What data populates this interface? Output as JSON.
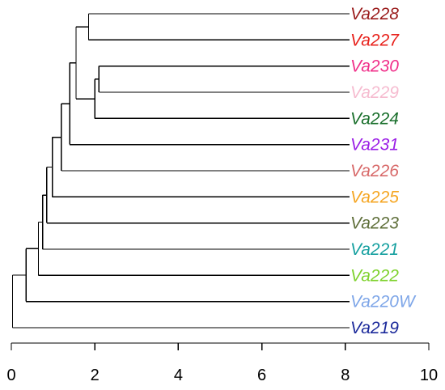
{
  "chart_data": {
    "type": "dendrogram",
    "orientation": "horizontal",
    "xlim": [
      0,
      10
    ],
    "x_ticks": [
      0,
      2,
      4,
      6,
      8,
      10
    ],
    "leaves": [
      {
        "name": "Va228",
        "color": "#9a1b1b"
      },
      {
        "name": "Va227",
        "color": "#e8221c"
      },
      {
        "name": "Va230",
        "color": "#f0308a"
      },
      {
        "name": "Va229",
        "color": "#f6bcd0"
      },
      {
        "name": "Va224",
        "color": "#1a6f2c"
      },
      {
        "name": "Va231",
        "color": "#9b1ee6"
      },
      {
        "name": "Va226",
        "color": "#d86a6a"
      },
      {
        "name": "Va225",
        "color": "#f5a623"
      },
      {
        "name": "Va223",
        "color": "#5f6f3a"
      },
      {
        "name": "Va221",
        "color": "#16a0a0"
      },
      {
        "name": "Va222",
        "color": "#7fd22e"
      },
      {
        "name": "Va220W",
        "color": "#7ea6e8"
      },
      {
        "name": "Va219",
        "color": "#1c2a9b"
      }
    ],
    "leaf_tip_height": 8.1,
    "merges": [
      {
        "id": "A",
        "children": [
          "Va228",
          "Va227"
        ],
        "height": 1.85
      },
      {
        "id": "B",
        "children": [
          "Va230",
          "Va229"
        ],
        "height": 2.1
      },
      {
        "id": "C",
        "children": [
          "B",
          "Va224"
        ],
        "height": 2.0
      },
      {
        "id": "D",
        "children": [
          "A",
          "C"
        ],
        "height": 1.55
      },
      {
        "id": "E",
        "children": [
          "D",
          "Va231"
        ],
        "height": 1.4
      },
      {
        "id": "F",
        "children": [
          "E",
          "Va226"
        ],
        "height": 1.2
      },
      {
        "id": "G",
        "children": [
          "F",
          "Va225"
        ],
        "height": 0.98
      },
      {
        "id": "H",
        "children": [
          "G",
          "Va223"
        ],
        "height": 0.85
      },
      {
        "id": "I",
        "children": [
          "H",
          "Va221"
        ],
        "height": 0.75
      },
      {
        "id": "J",
        "children": [
          "I",
          "Va222"
        ],
        "height": 0.65
      },
      {
        "id": "K",
        "children": [
          "J",
          "Va220W"
        ],
        "height": 0.35
      },
      {
        "id": "L",
        "children": [
          "K",
          "Va219"
        ],
        "height": 0.03
      }
    ]
  }
}
